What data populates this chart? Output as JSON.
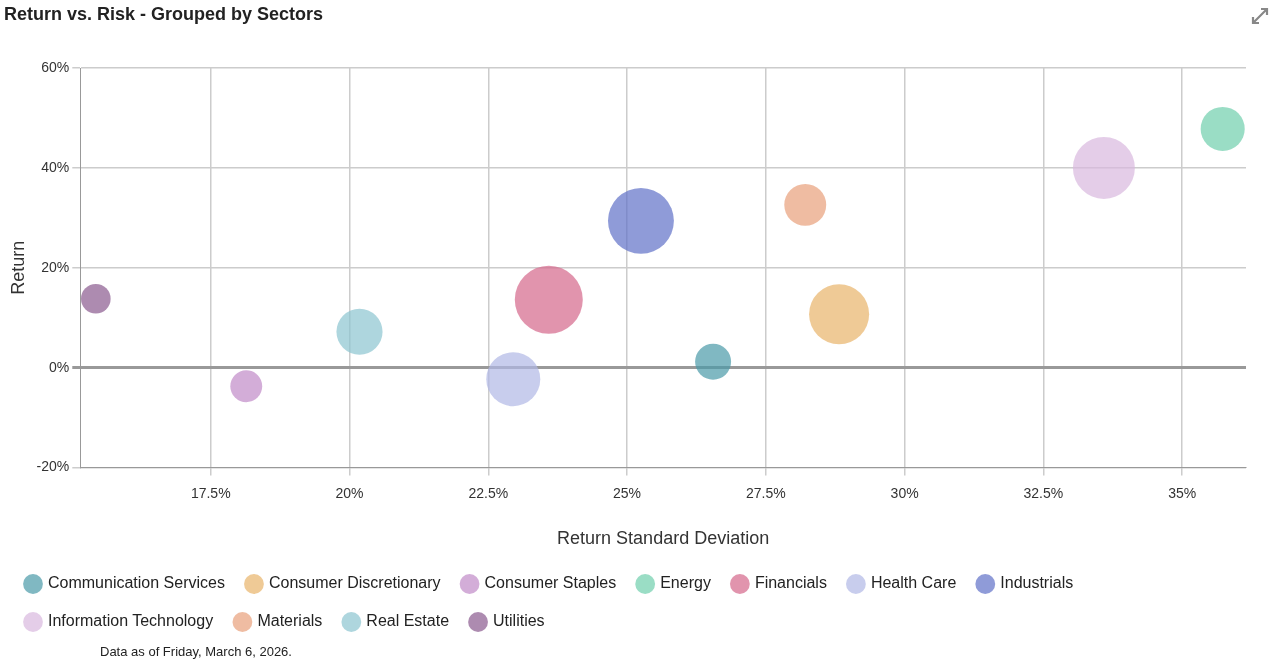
{
  "chart_data": {
    "type": "bubble",
    "title": "Return vs. Risk - Grouped by Sectors",
    "xlabel": "Return Standard Deviation",
    "ylabel": "Return",
    "xlim": [
      15.15,
      36.15
    ],
    "xticks": [
      {
        "value": 17.5,
        "label": "17.5%"
      },
      {
        "value": 20,
        "label": "20%"
      },
      {
        "value": 22.5,
        "label": "22.5%"
      },
      {
        "value": 25,
        "label": "25%"
      },
      {
        "value": 27.5,
        "label": "27.5%"
      },
      {
        "value": 30,
        "label": "30%"
      },
      {
        "value": 32.5,
        "label": "32.5%"
      },
      {
        "value": 35,
        "label": "35%"
      }
    ],
    "ylim": [
      -20,
      60
    ],
    "yticks": [
      {
        "value": -20,
        "label": "-20%"
      },
      {
        "value": 0,
        "label": "0%"
      },
      {
        "value": 20,
        "label": "20%"
      },
      {
        "value": 40,
        "label": "40%"
      },
      {
        "value": 60,
        "label": "60%"
      }
    ],
    "grid": true,
    "legend": "bottom",
    "series": [
      {
        "name": "Communication Services",
        "color": "#4a9aa8",
        "x": [
          26.55
        ],
        "values": [
          1.2
        ],
        "sizes": [
          0.28
        ]
      },
      {
        "name": "Consumer Discretionary",
        "color": "#e8b46a",
        "x": [
          28.82
        ],
        "values": [
          10.7
        ],
        "sizes": [
          0.78
        ]
      },
      {
        "name": "Consumer Staples",
        "color": "#c08ac8",
        "x": [
          18.14
        ],
        "values": [
          -3.7
        ],
        "sizes": [
          0.22
        ]
      },
      {
        "name": "Energy",
        "color": "#6fcfad",
        "x": [
          35.73
        ],
        "values": [
          47.8
        ],
        "sizes": [
          0.42
        ]
      },
      {
        "name": "Financials",
        "color": "#d4668a",
        "x": [
          23.59
        ],
        "values": [
          13.6
        ],
        "sizes": [
          1
        ]
      },
      {
        "name": "Health Care",
        "color": "#b0b8e6",
        "x": [
          22.95
        ],
        "values": [
          -2.3
        ],
        "sizes": [
          0.63
        ]
      },
      {
        "name": "Industrials",
        "color": "#6070c8",
        "x": [
          25.25
        ],
        "values": [
          29.4
        ],
        "sizes": [
          0.94
        ]
      },
      {
        "name": "Information Technology",
        "color": "#d8b8de",
        "x": [
          33.59
        ],
        "values": [
          40
        ],
        "sizes": [
          0.83
        ]
      },
      {
        "name": "Materials",
        "color": "#e8a07a",
        "x": [
          28.21
        ],
        "values": [
          32.6
        ],
        "sizes": [
          0.38
        ]
      },
      {
        "name": "Real Estate",
        "color": "#8cc4d0",
        "x": [
          20.18
        ],
        "values": [
          7.2
        ],
        "sizes": [
          0.46
        ]
      },
      {
        "name": "Utilities",
        "color": "#8a5a8e",
        "x": [
          15.43
        ],
        "values": [
          13.8
        ],
        "sizes": [
          0.19
        ]
      }
    ],
    "annotations": [
      "Data as of Friday, March 6, 2026."
    ]
  }
}
